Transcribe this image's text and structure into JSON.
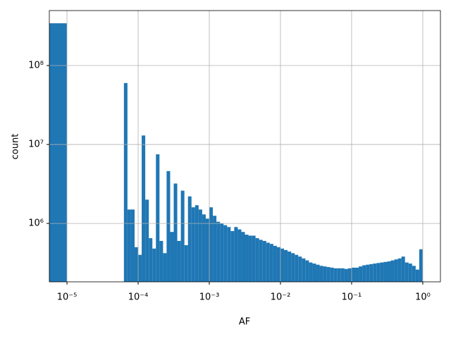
{
  "chart_data": {
    "type": "histogram",
    "xlabel": "AF",
    "ylabel": "count",
    "color": "#1f77b4",
    "xscale": "log",
    "yscale": "log",
    "grid": true,
    "bins": [
      5e-06,
      1e-05,
      6.31e-05,
      7.079e-05,
      7.943e-05,
      8.913e-05,
      0.0001,
      0.0001122,
      0.0001259,
      0.0001413,
      0.0001585,
      0.0001778,
      0.0001995,
      0.0002239,
      0.0002512,
      0.0002818,
      0.0003162,
      0.0003548,
      0.0003981,
      0.0004467,
      0.0005012,
      0.0005623,
      0.000631,
      0.0007079,
      0.0007943,
      0.0008913,
      0.001,
      0.001122,
      0.001259,
      0.001413,
      0.001585,
      0.001778,
      0.001995,
      0.002239,
      0.002512,
      0.002818,
      0.003162,
      0.003548,
      0.003981,
      0.004467,
      0.005012,
      0.005623,
      0.00631,
      0.007079,
      0.007943,
      0.008913,
      0.01,
      0.01122,
      0.01259,
      0.01413,
      0.01585,
      0.01778,
      0.01995,
      0.02239,
      0.02512,
      0.02818,
      0.03162,
      0.03548,
      0.03981,
      0.04467,
      0.05012,
      0.05623,
      0.0631,
      0.07079,
      0.07943,
      0.08913,
      0.1,
      0.1122,
      0.1259,
      0.1413,
      0.1585,
      0.1778,
      0.1995,
      0.2239,
      0.2512,
      0.2818,
      0.3162,
      0.3548,
      0.3981,
      0.4467,
      0.5012,
      0.5623,
      0.631,
      0.7079,
      0.7943,
      0.8913,
      1
    ],
    "counts": [
      343000000,
      0,
      60000000,
      1500000,
      1500000,
      500000,
      400000,
      13000000,
      2000000,
      650000,
      480000,
      7500000,
      600000,
      420000,
      4600000,
      780000,
      3200000,
      600000,
      2600000,
      530000,
      2200000,
      1600000,
      1700000,
      1500000,
      1300000,
      1150000,
      1600000,
      1250000,
      1050000,
      1000000,
      950000,
      900000,
      800000,
      900000,
      840000,
      780000,
      720000,
      700000,
      700000,
      650000,
      620000,
      600000,
      570000,
      550000,
      520000,
      500000,
      480000,
      460000,
      440000,
      420000,
      400000,
      380000,
      360000,
      340000,
      320000,
      310000,
      300000,
      290000,
      285000,
      280000,
      275000,
      270000,
      270000,
      270000,
      265000,
      270000,
      275000,
      275000,
      285000,
      295000,
      300000,
      305000,
      310000,
      315000,
      320000,
      325000,
      330000,
      340000,
      350000,
      360000,
      380000,
      320000,
      310000,
      290000,
      260000,
      470000
    ],
    "xlim": [
      5.65e-06,
      1.77
    ],
    "ylim": [
      182000,
      497000000
    ],
    "xticks": [
      {
        "value": 1e-05,
        "label": "10⁻⁵"
      },
      {
        "value": 0.0001,
        "label": "10⁻⁴"
      },
      {
        "value": 0.001,
        "label": "10⁻³"
      },
      {
        "value": 0.01,
        "label": "10⁻²"
      },
      {
        "value": 0.1,
        "label": "10⁻¹"
      },
      {
        "value": 1,
        "label": "10⁰"
      }
    ],
    "yticks": [
      {
        "value": 1000000,
        "label": "10⁶"
      },
      {
        "value": 10000000,
        "label": "10⁷"
      },
      {
        "value": 100000000,
        "label": "10⁸"
      }
    ]
  }
}
